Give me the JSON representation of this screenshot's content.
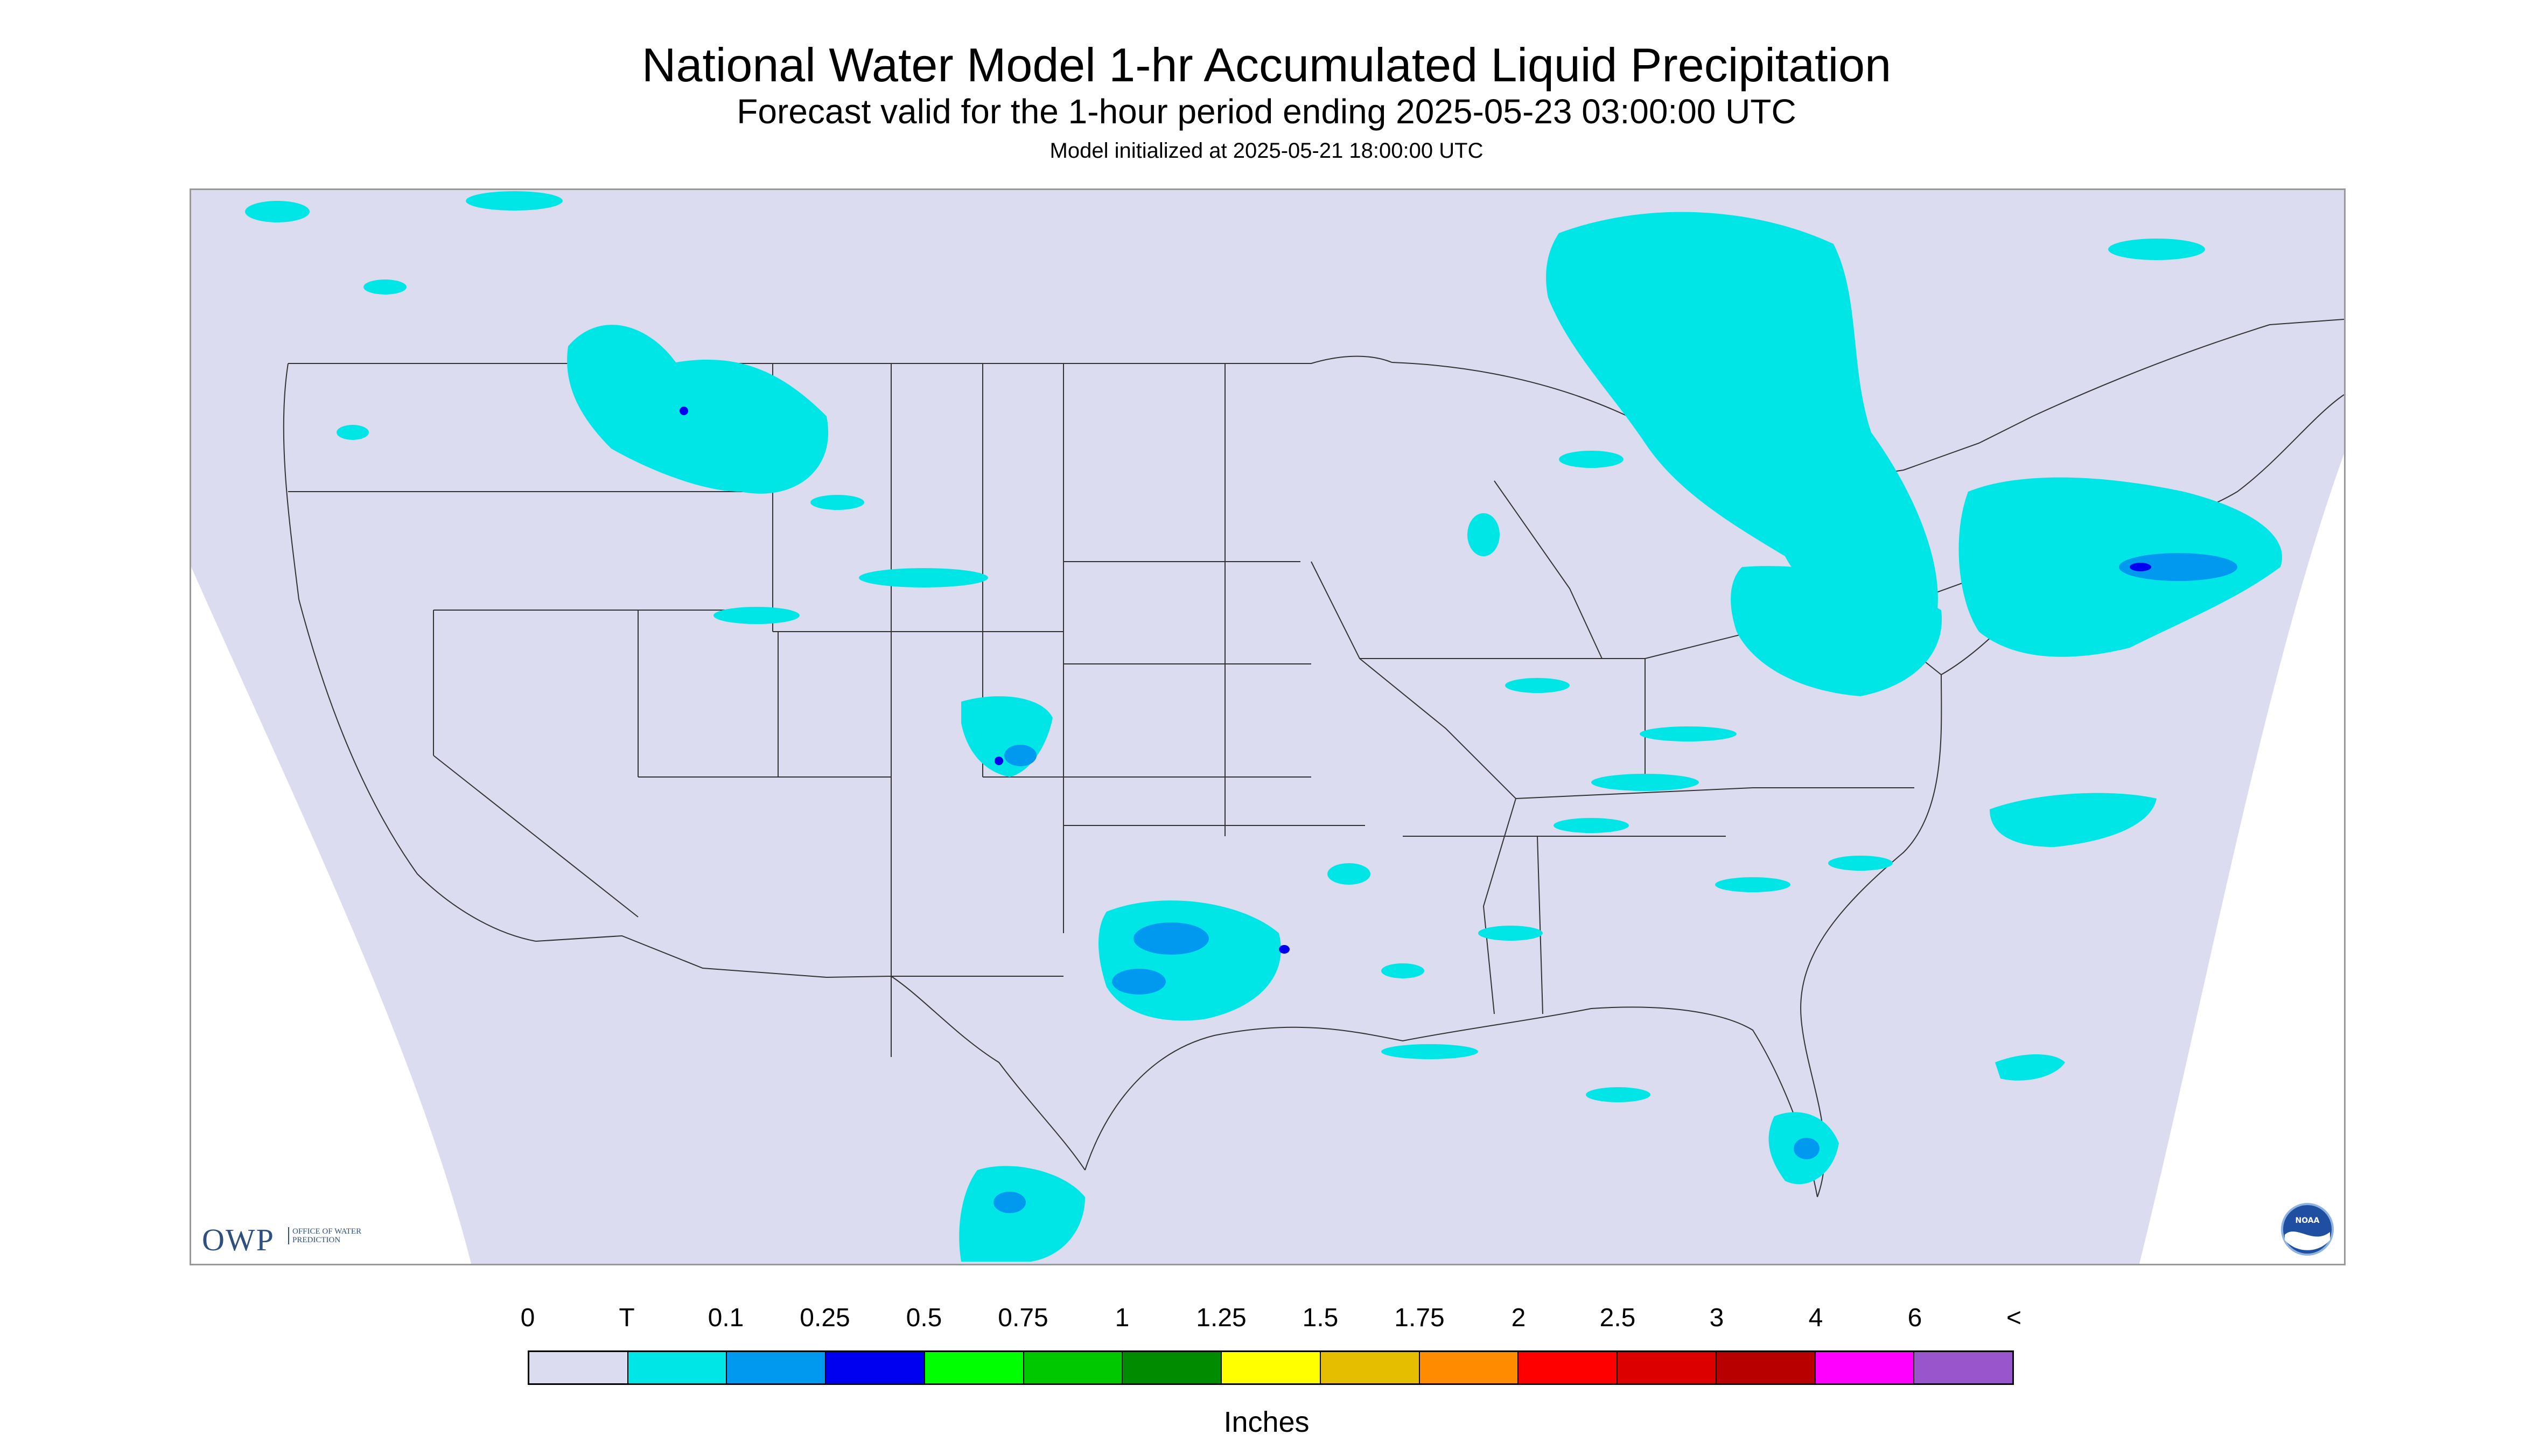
{
  "title": "National Water Model 1-hr Accumulated Liquid Precipitation",
  "subtitle": "Forecast valid for the 1-hour period ending 2025-05-23 03:00:00 UTC",
  "init_line": "Model initialized at 2025-05-21 18:00:00 UTC",
  "owp_logo": {
    "letters": "OWP",
    "text": "OFFICE OF WATER PREDICTION"
  },
  "noaa_logo": {
    "text": "NOAA"
  },
  "legend": {
    "units": "Inches",
    "tick_labels": [
      "0",
      "T",
      "0.1",
      "0.25",
      "0.5",
      "0.75",
      "1",
      "1.25",
      "1.5",
      "1.75",
      "2",
      "2.5",
      "3",
      "4",
      "6",
      "<"
    ],
    "colors": [
      "#dcdcf0",
      "#00e6e6",
      "#0099f0",
      "#0000f0",
      "#00ff00",
      "#00c800",
      "#008c00",
      "#ffff00",
      "#e6be00",
      "#ff8c00",
      "#ff0000",
      "#dc0000",
      "#b90000",
      "#ff00ff",
      "#9955cc"
    ]
  },
  "map_colors": {
    "domain_fill": "#dcdcf0",
    "outside_fill": "#ffffff",
    "boundary_stroke": "#333333",
    "trace": "#00e6e6",
    "light": "#0099f0",
    "moderate": "#0000f0"
  }
}
